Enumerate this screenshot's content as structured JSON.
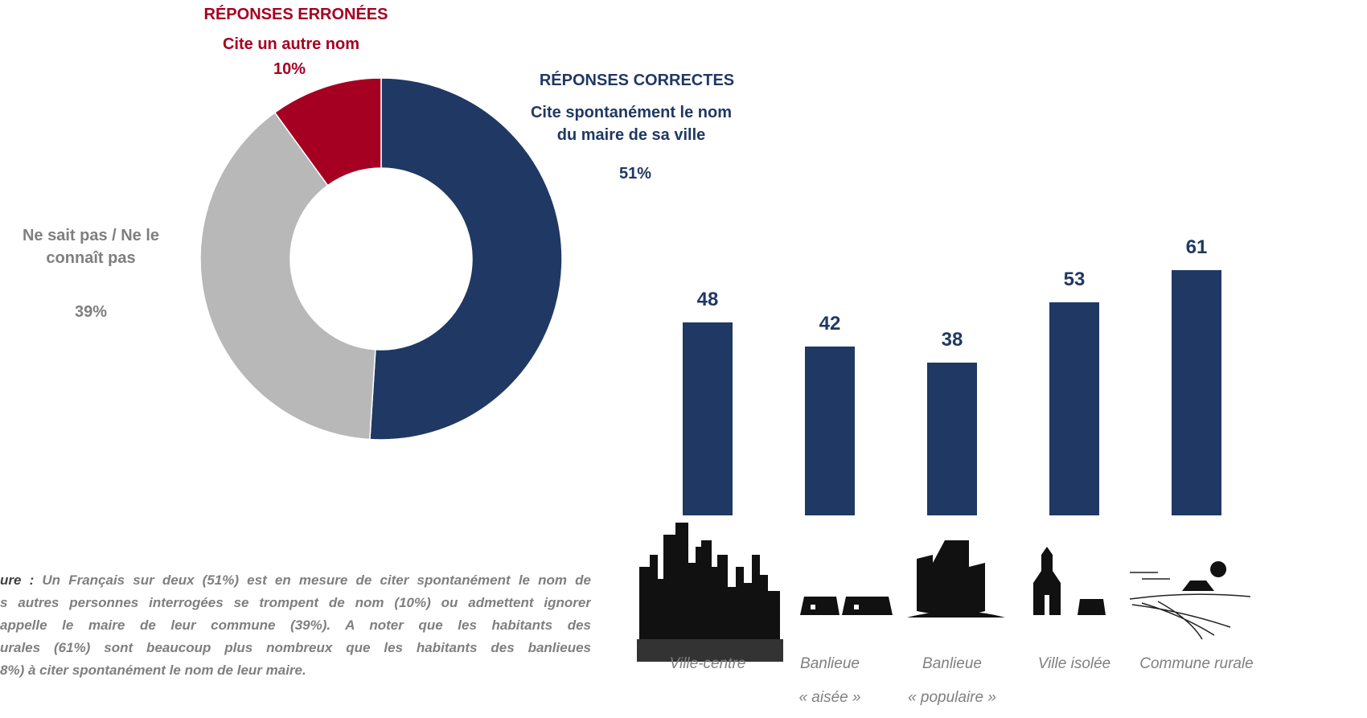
{
  "chart_data": [
    {
      "type": "donut",
      "categories": [
        "Cite spontanément le nom\ndu maire de sa ville",
        "Ne sait pas / Ne le\nconnaît pas",
        "Cite un autre nom"
      ],
      "values": [
        51,
        39,
        10
      ],
      "value_labels": [
        "51%",
        "39%",
        "10%"
      ],
      "colors": [
        "#203864",
        "#b8b8b8",
        "#a50021"
      ],
      "annotations": [
        "RÉPONSES CORRECTES",
        "RÉPONSES ERRONÉES"
      ]
    },
    {
      "type": "bar",
      "categories": [
        "Ville-centre",
        "Banlieue\n« aisée »",
        "Banlieue\n« populaire »",
        "Ville isolée",
        "Commune rurale"
      ],
      "values": [
        48,
        42,
        38,
        53,
        61
      ],
      "color": "#203864"
    }
  ],
  "note": {
    "lead": "ure :",
    "lines": [
      "Un Français sur deux (51%) est en mesure de citer spontanément le nom de",
      "s autres personnes interrogées se trompent de nom (10%) ou admettent ignorer",
      "appelle le maire de leur commune (39%). A noter que les habitants des",
      "urales (61%) sont beaucoup plus nombreux que les habitants des banlieues",
      "8%) à citer spontanément le nom de leur maire."
    ]
  }
}
